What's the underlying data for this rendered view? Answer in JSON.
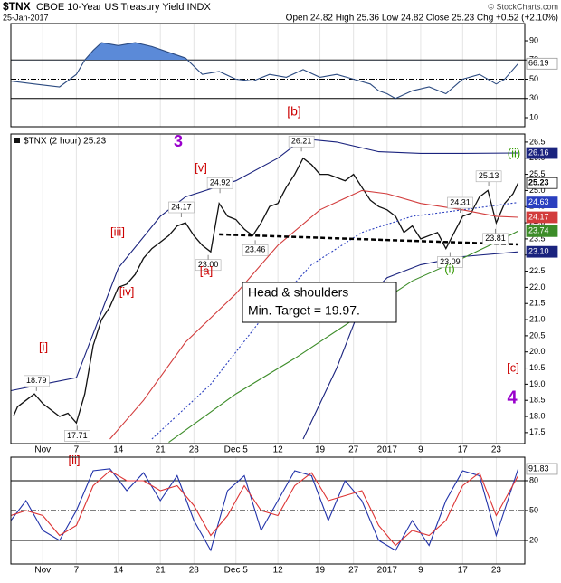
{
  "header": {
    "symbol": "$TNX",
    "name": "CBOE 10-Year US Treasury Yield INDX",
    "date": "25-Jan-2017",
    "quote": "Open 24.82  High 25.36  Low 24.82  Close 25.23  Chg +0.52 (+2.10%)",
    "credit": "© StockCharts.com"
  },
  "chart_data": [
    {
      "type": "line",
      "xlim": [
        -3.8,
        57.4
      ],
      "ylim": [
        0.6,
        107.9
      ],
      "yticks": [
        10,
        30,
        50,
        70,
        90
      ],
      "hlines": [
        {
          "value": 70,
          "style": "solid"
        },
        {
          "value": 50,
          "style": "dashdot"
        },
        {
          "value": 30,
          "style": "solid"
        }
      ],
      "fill_color": "#5b8ad8",
      "x": [
        -3.8,
        -1,
        2,
        4,
        5,
        6,
        7,
        9,
        11,
        13,
        15,
        17,
        19,
        21,
        23,
        25,
        27,
        29,
        31,
        33,
        35,
        37,
        39,
        40,
        41,
        42,
        44,
        46,
        48,
        50,
        52,
        54,
        55,
        56.6
      ],
      "series": [
        {
          "color": "#2b4a80",
          "values": [
            48,
            45,
            42,
            55,
            70,
            80,
            88,
            85,
            88,
            84,
            78,
            72,
            55,
            58,
            50,
            48,
            55,
            52,
            60,
            52,
            55,
            50,
            45,
            38,
            35,
            30,
            38,
            42,
            35,
            50,
            55,
            45,
            50,
            66.19
          ],
          "end_label": "66.19"
        }
      ],
      "annotations": [
        {
          "text": "[b]",
          "color": "#cc0000"
        }
      ]
    },
    {
      "type": "line",
      "legend": "$TNX (2 hour) 25.23",
      "xlim": [
        -3.8,
        57.4
      ],
      "ylim": [
        17.16,
        26.75
      ],
      "yticks": [
        17.5,
        {
          "value": 18,
          "label": "18.0"
        },
        18.5,
        {
          "value": 19,
          "label": "19.0"
        },
        19.5,
        {
          "value": 20,
          "label": "20.0"
        },
        20.5,
        {
          "value": 21,
          "label": "21.0"
        },
        21.5,
        {
          "value": 22,
          "label": "22.0"
        },
        22.5,
        {
          "value": 23,
          "label": "23.0"
        },
        23.5,
        {
          "value": 24,
          "label": "24.0"
        },
        24.5,
        {
          "value": 25,
          "label": "25.0"
        },
        25.5,
        {
          "value": 26,
          "label": "26.0"
        },
        26.5
      ],
      "xticks": [
        {
          "value": 0,
          "label": "Nov"
        },
        {
          "value": 4,
          "label": "7"
        },
        {
          "value": 9,
          "label": "14"
        },
        {
          "value": 14,
          "label": "21"
        },
        {
          "value": 18,
          "label": "28"
        },
        {
          "value": 23,
          "label": "Dec 5"
        },
        {
          "value": 28,
          "label": "12"
        },
        {
          "value": 33,
          "label": "19"
        },
        {
          "value": 37,
          "label": "27"
        },
        {
          "value": 41,
          "label": "2017"
        },
        {
          "value": 45,
          "label": "9"
        },
        {
          "value": 50,
          "label": "17"
        },
        {
          "value": 54,
          "label": "23"
        }
      ],
      "xgrid": true,
      "series": [
        {
          "color": "#111111",
          "x": [
            -3.5,
            -3,
            -2,
            -1,
            0,
            1,
            2,
            3,
            4,
            5,
            6,
            7,
            8,
            9,
            10,
            11,
            12,
            13,
            14,
            15,
            16,
            17,
            18,
            19,
            20,
            21,
            22,
            23,
            24,
            25,
            26,
            27,
            28,
            29,
            30,
            31,
            32,
            33,
            34,
            35,
            36,
            37,
            38,
            39,
            40,
            41,
            42,
            43,
            44,
            45,
            46,
            47,
            48,
            49,
            50,
            51,
            52,
            53,
            54,
            55,
            56,
            56.6
          ],
          "values": [
            18.0,
            18.3,
            18.5,
            18.7,
            18.4,
            18.2,
            18.0,
            18.1,
            17.8,
            18.7,
            20.2,
            21.0,
            21.4,
            22.0,
            22.1,
            22.4,
            22.9,
            23.2,
            23.4,
            23.6,
            23.9,
            24.0,
            23.6,
            23.3,
            23.1,
            24.6,
            24.2,
            24.1,
            23.8,
            23.6,
            24.0,
            24.5,
            24.6,
            25.1,
            25.5,
            26.0,
            25.8,
            25.5,
            25.5,
            25.4,
            25.3,
            25.5,
            25.1,
            24.7,
            24.5,
            24.4,
            24.2,
            23.7,
            23.9,
            23.5,
            23.6,
            23.7,
            23.2,
            23.7,
            24.2,
            24.3,
            24.8,
            25.0,
            24.0,
            24.6,
            24.9,
            25.23
          ],
          "end_label": "25.23"
        },
        {
          "color": "#1a237e",
          "x": [
            -3.8,
            0,
            4,
            9,
            14,
            17,
            23,
            28,
            31,
            35,
            40,
            45,
            50,
            56.6
          ],
          "values": [
            18.8,
            19.0,
            19.2,
            22.6,
            24.2,
            24.8,
            25.3,
            26.0,
            26.6,
            26.5,
            26.2,
            26.15,
            26.15,
            26.16
          ],
          "end_label": "26.16"
        },
        {
          "color": "#1a237e",
          "x": [
            31,
            35,
            38,
            41,
            45,
            50,
            56.6
          ],
          "values": [
            17.3,
            19.5,
            21.5,
            22.3,
            22.7,
            22.95,
            23.1
          ],
          "end_label": "23.10"
        },
        {
          "color": "#2a3fbf",
          "dashed": true,
          "x": [
            13,
            20,
            26,
            32,
            38,
            44,
            50,
            56.6
          ],
          "values": [
            17.3,
            19.0,
            21.0,
            22.7,
            23.7,
            24.2,
            24.4,
            24.63
          ],
          "end_label": "24.63"
        },
        {
          "color": "#d23c3c",
          "x": [
            8,
            12,
            17,
            23,
            28,
            33,
            38,
            41,
            45,
            50,
            54,
            56.6
          ],
          "values": [
            17.3,
            18.5,
            20.3,
            21.8,
            23.3,
            24.4,
            25.0,
            24.9,
            24.6,
            24.4,
            24.2,
            24.17
          ],
          "end_label": "24.17"
        },
        {
          "color": "#3c8c28",
          "x": [
            15,
            23,
            30,
            37,
            44,
            50,
            54,
            56.6
          ],
          "values": [
            17.2,
            18.7,
            19.8,
            21.0,
            22.2,
            22.9,
            23.4,
            23.74
          ],
          "end_label": "23.74"
        }
      ],
      "neckline": {
        "x": [
          21,
          56.6
        ],
        "y": [
          23.64,
          23.33
        ]
      },
      "point_labels": [
        {
          "x": -0.75,
          "y": 18.79,
          "label": "18.79",
          "side": "above"
        },
        {
          "x": 4.1,
          "y": 17.71,
          "label": "17.71",
          "side": "below"
        },
        {
          "x": 16.5,
          "y": 24.17,
          "label": "24.17",
          "side": "above"
        },
        {
          "x": 21.1,
          "y": 24.92,
          "label": "24.92",
          "side": "above"
        },
        {
          "x": 19.7,
          "y": 23,
          "label": "23.00",
          "side": "below"
        },
        {
          "x": 25.3,
          "y": 23.46,
          "label": "23.46",
          "side": "below"
        },
        {
          "x": 30.8,
          "y": 26.21,
          "label": "26.21",
          "side": "above"
        },
        {
          "x": 49.7,
          "y": 24.31,
          "label": "24.31",
          "side": "above"
        },
        {
          "x": 53.1,
          "y": 25.13,
          "label": "25.13",
          "side": "above"
        },
        {
          "x": 48.5,
          "y": 23.09,
          "label": "23.09",
          "side": "below"
        },
        {
          "x": 53.9,
          "y": 23.81,
          "label": "23.81",
          "side": "below"
        }
      ],
      "annotations": [
        {
          "text": "3",
          "color": "#9900cc"
        },
        {
          "text": "[v]",
          "color": "#cc0000"
        },
        {
          "text": "[iii]",
          "color": "#cc0000"
        },
        {
          "text": "[iv]",
          "color": "#cc0000"
        },
        {
          "text": "[i]",
          "color": "#cc0000"
        },
        {
          "text": "[ii]",
          "color": "#cc0000"
        },
        {
          "text": "[a]",
          "color": "#cc0000"
        },
        {
          "text": "(ii)",
          "color": "#339900"
        },
        {
          "text": "(i)",
          "color": "#339900"
        },
        {
          "text": "[c]",
          "color": "#cc0000"
        },
        {
          "text": "4",
          "color": "#9900cc"
        }
      ],
      "note": [
        "Head & shoulders",
        "Min. Target = 19.97."
      ]
    },
    {
      "type": "line",
      "xlim": [
        -3.8,
        57.4
      ],
      "ylim": [
        -3.6,
        103.6
      ],
      "yticks": [
        20,
        50,
        80
      ],
      "hlines": [
        {
          "value": 80,
          "style": "solid"
        },
        {
          "value": 50,
          "style": "dashdot"
        },
        {
          "value": 20,
          "style": "solid"
        }
      ],
      "x": [
        -3.8,
        -2,
        0,
        2,
        4,
        6,
        8,
        10,
        12,
        14,
        16,
        18,
        20,
        22,
        24,
        26,
        28,
        30,
        32,
        34,
        36,
        38,
        40,
        42,
        44,
        46,
        48,
        50,
        52,
        54,
        56.6
      ],
      "series": [
        {
          "color": "#2233aa",
          "values": [
            40,
            60,
            30,
            20,
            50,
            90,
            92,
            70,
            88,
            60,
            85,
            40,
            10,
            70,
            85,
            30,
            60,
            90,
            85,
            40,
            80,
            60,
            20,
            10,
            40,
            15,
            60,
            90,
            85,
            25,
            91.83
          ],
          "end_label": "91.83"
        },
        {
          "color": "#dd3333",
          "values": [
            45,
            50,
            45,
            25,
            35,
            75,
            90,
            80,
            80,
            70,
            75,
            55,
            25,
            45,
            75,
            50,
            45,
            75,
            88,
            60,
            65,
            70,
            35,
            15,
            30,
            25,
            40,
            75,
            88,
            45,
            85
          ]
        }
      ]
    }
  ]
}
